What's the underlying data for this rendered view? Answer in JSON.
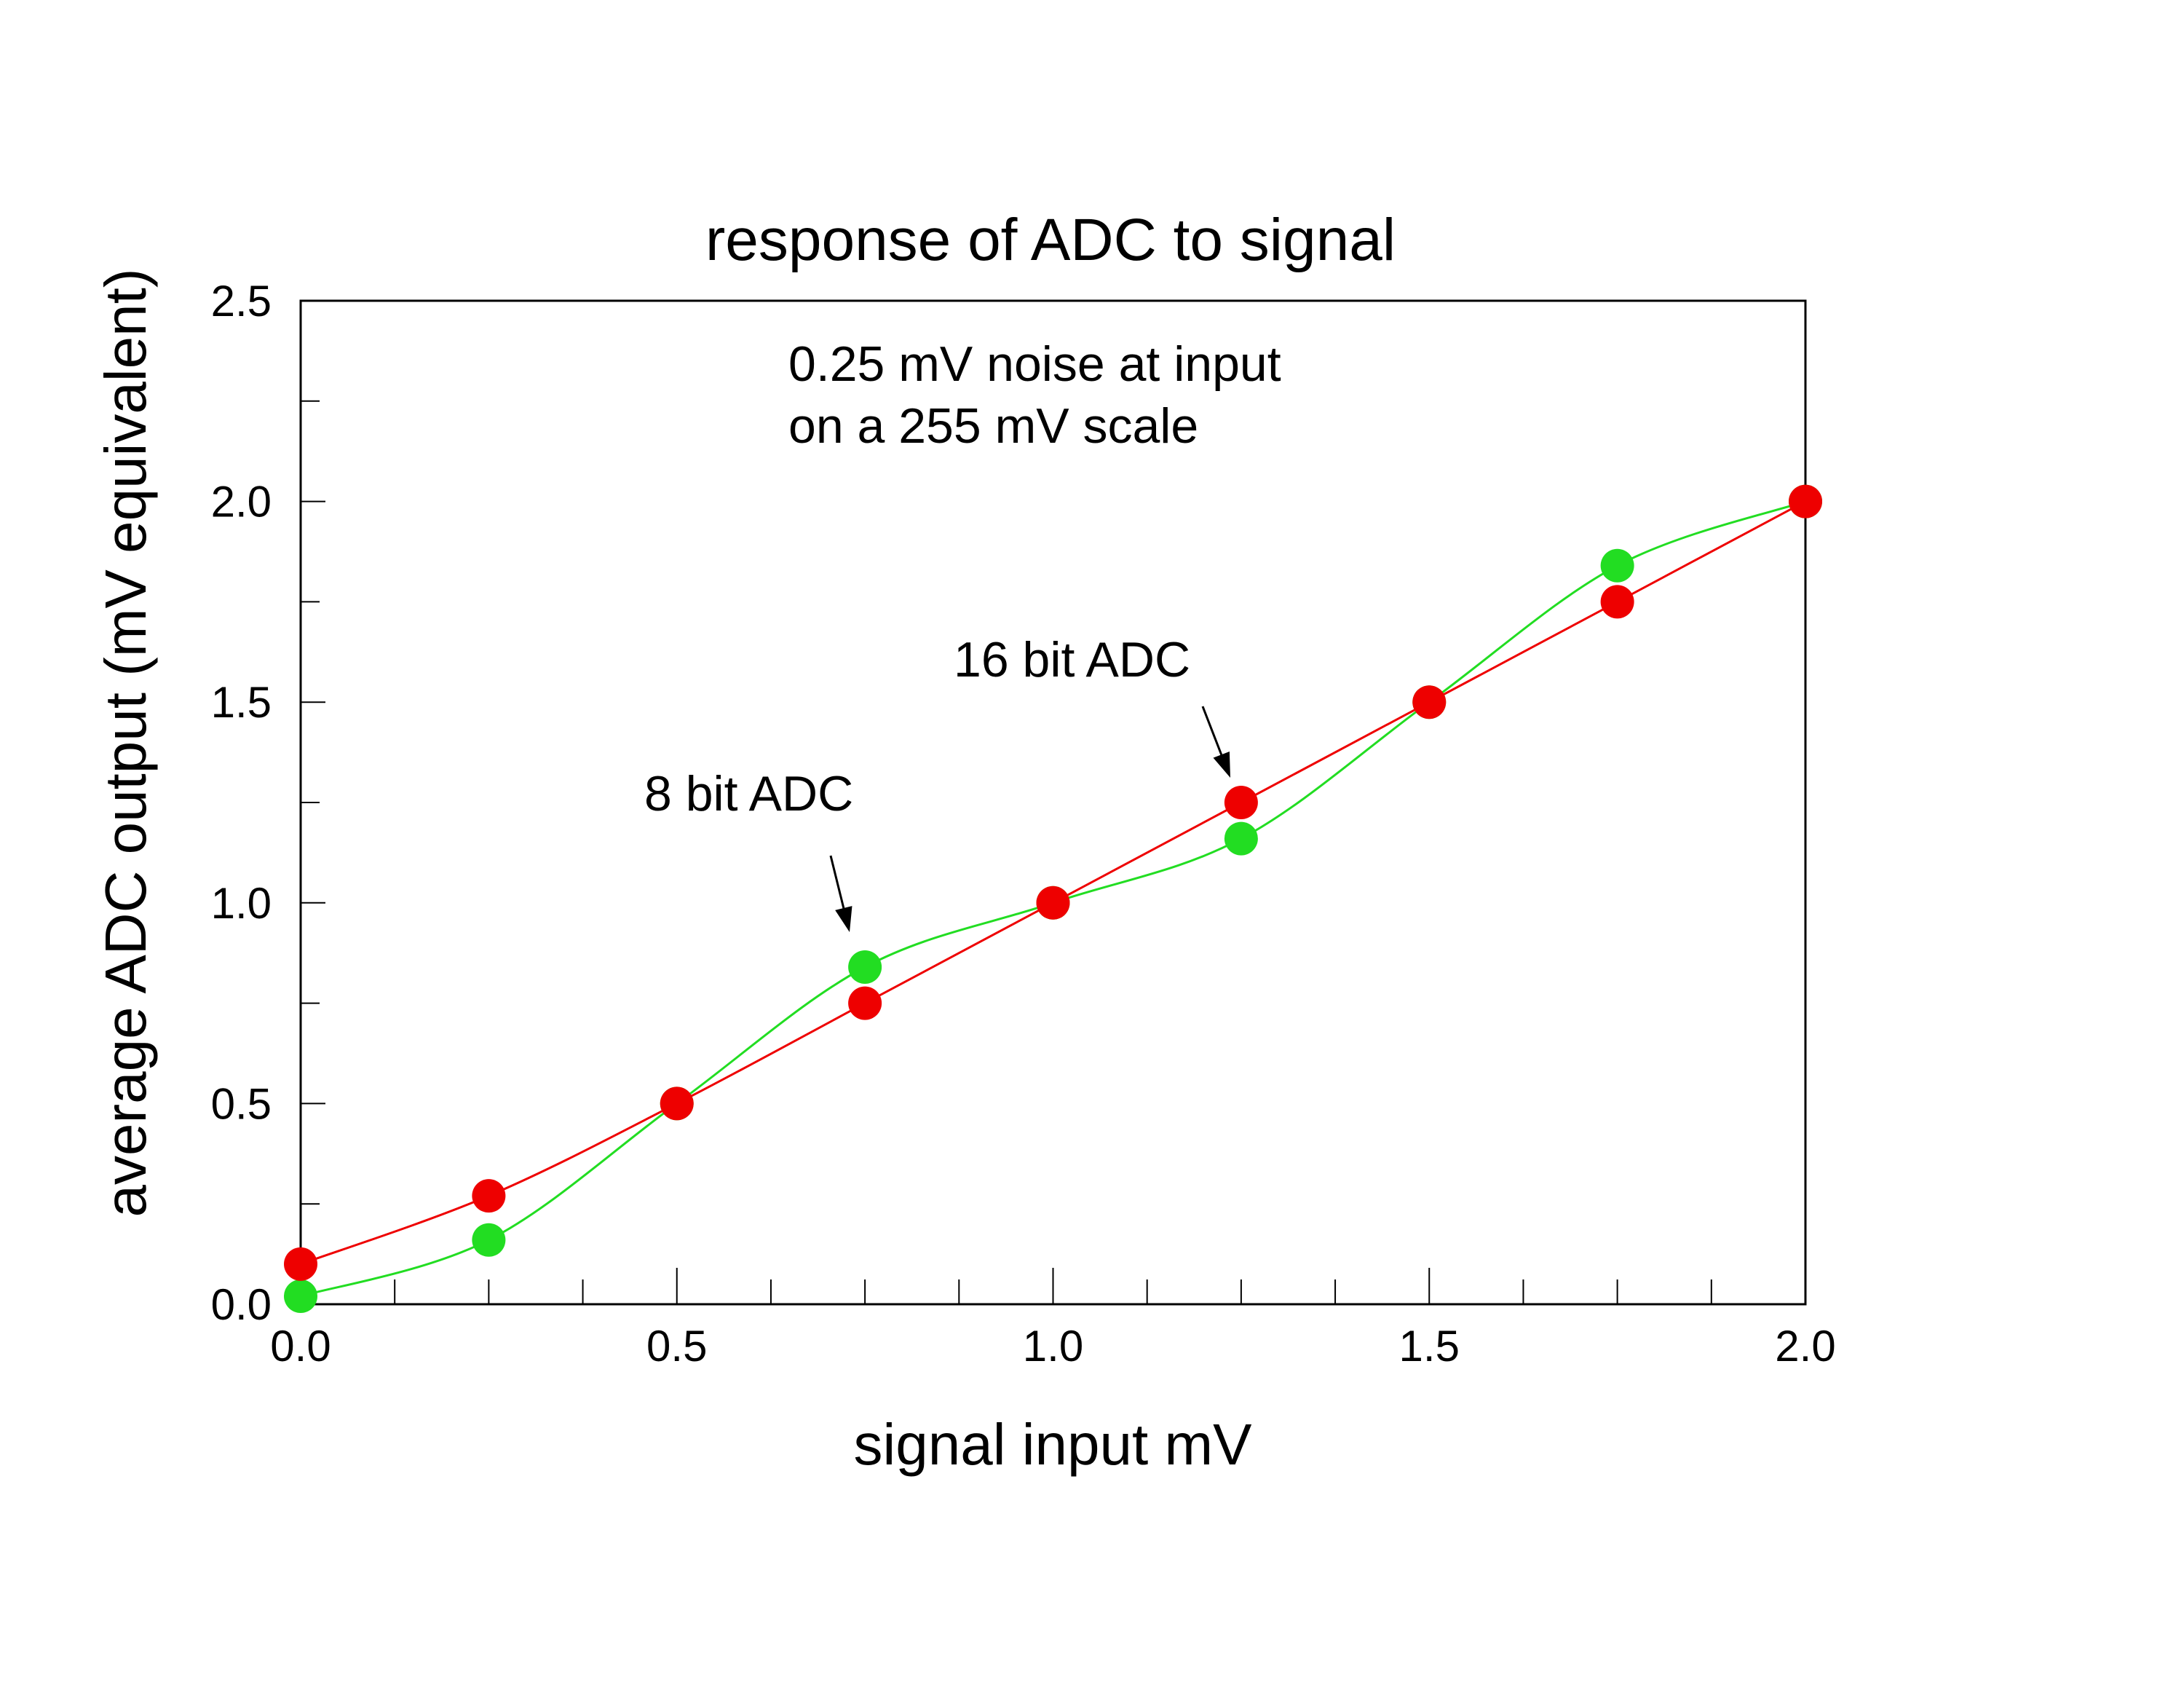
{
  "chart_data": {
    "type": "line",
    "title": "response of ADC to signal",
    "xlabel": "signal input mV",
    "ylabel": "average ADC output (mV equivalent)",
    "xlim": [
      0.0,
      2.0
    ],
    "ylim": [
      0.0,
      2.5
    ],
    "x_ticks": [
      "0.0",
      "0.5",
      "1.0",
      "1.5",
      "2.0"
    ],
    "y_ticks": [
      "0.0",
      "0.5",
      "1.0",
      "1.5",
      "2.0",
      "2.5"
    ],
    "grid": false,
    "note_lines": [
      "0.25 mV noise at input",
      "on a 255 mV scale"
    ],
    "annotations": [
      {
        "text": "8 bit ADC",
        "x": 0.75,
        "y": 0.84
      },
      {
        "text": "16 bit ADC",
        "x": 1.25,
        "y": 1.25
      }
    ],
    "series": [
      {
        "color": "#22dd22",
        "x": [
          0.0,
          0.25,
          0.5,
          0.75,
          1.0,
          1.25,
          1.5,
          1.75,
          2.0
        ],
        "y": [
          0.02,
          0.16,
          0.5,
          0.84,
          1.0,
          1.16,
          1.5,
          1.84,
          2.0
        ]
      },
      {
        "color": "#ee0000",
        "x": [
          0.0,
          0.25,
          0.5,
          0.75,
          1.0,
          1.25,
          1.5,
          1.75,
          2.0
        ],
        "y": [
          0.1,
          0.27,
          0.5,
          0.75,
          1.0,
          1.25,
          1.5,
          1.75,
          2.0
        ]
      }
    ]
  }
}
